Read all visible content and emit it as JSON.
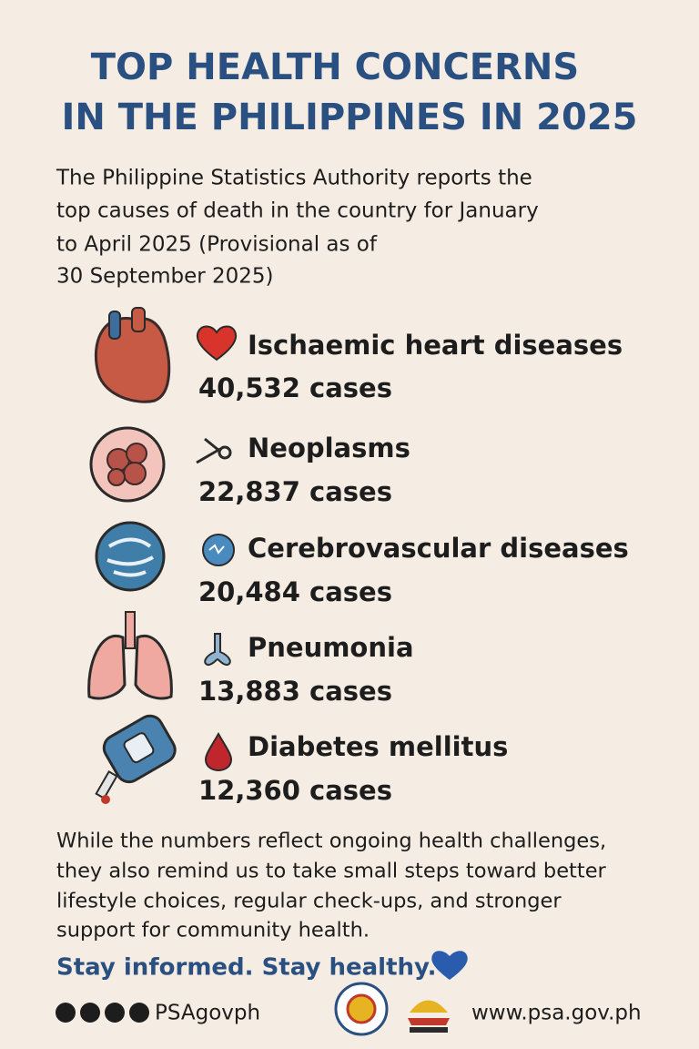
{
  "header": {
    "title_lines": [
      "TOP HEALTH CONCERNS",
      "IN THE PHILIPPINES IN 2025"
    ]
  },
  "intro": {
    "lines": [
      "The Philippine Statistics Authority reports the",
      "top causes of death in the country for January",
      "to April 2025 (Provisional as of",
      "30 September 2025)"
    ]
  },
  "items": [
    {
      "name": "Ischaemic heart diseases",
      "cases": "40,532 cases"
    },
    {
      "name": "Neoplasms",
      "cases": "22,837 cases"
    },
    {
      "name": "Cerebrovascular diseases",
      "cases": "20,484 cases"
    },
    {
      "name": "Pneumonia",
      "cases": "13,883 cases"
    },
    {
      "name": "Diabetes mellitus",
      "cases": "12,360 cases"
    }
  ],
  "closing": {
    "lines": [
      "While the numbers reflect ongoing health challenges,",
      "they also remind us to take small steps toward better",
      "lifestyle choices, regular check-ups, and stronger",
      "support for community health."
    ],
    "tagline": "Stay informed. Stay healthy."
  },
  "footer": {
    "handle": "PSAgovph",
    "website": "www.psa.gov.ph"
  }
}
